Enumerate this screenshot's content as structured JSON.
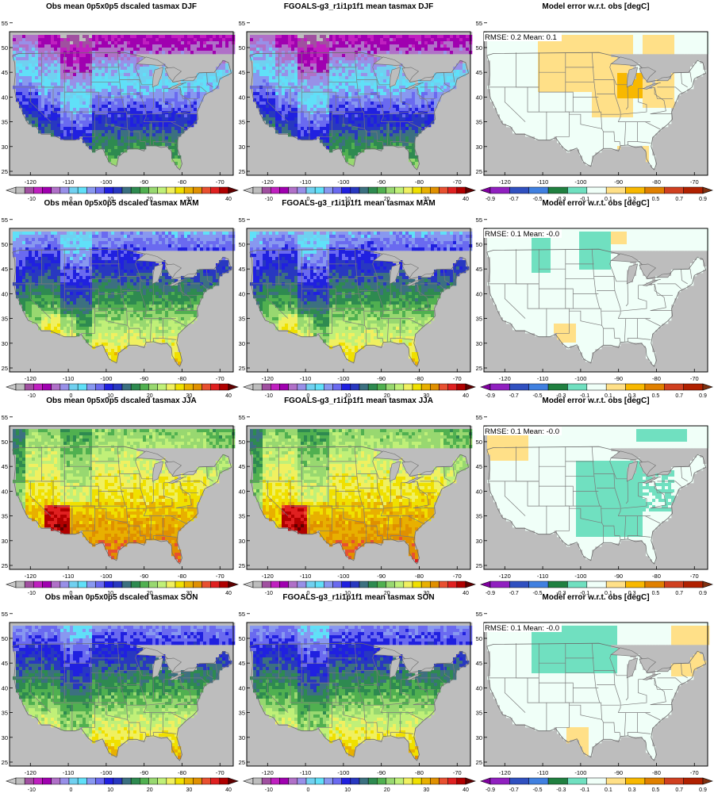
{
  "figure": {
    "rows": [
      {
        "season": "DJF",
        "titles": [
          "Obs mean 0p5x0p5 dscaled tasmax DJF",
          "FGOALS-g3_r1i1p1f1 mean tasmax DJF",
          "Model error w.r.t. obs [degC]"
        ],
        "stats": "RMSE: 0.2  Mean: 0.1"
      },
      {
        "season": "MAM",
        "titles": [
          "Obs mean 0p5x0p5 dscaled tasmax MAM",
          "FGOALS-g3_r1i1p1f1 mean tasmax MAM",
          "Model error w.r.t. obs [degC]"
        ],
        "stats": "RMSE: 0.1  Mean: -0.0"
      },
      {
        "season": "JJA",
        "titles": [
          "Obs mean 0p5x0p5 dscaled tasmax JJA",
          "FGOALS-g3_r1i1p1f1 mean tasmax JJA",
          "Model error w.r.t. obs [degC]"
        ],
        "stats": "RMSE: 0.1  Mean: -0.0"
      },
      {
        "season": "SON",
        "titles": [
          "Obs mean 0p5x0p5 dscaled tasmax SON",
          "FGOALS-g3_r1i1p1f1 mean tasmax SON",
          "Model error w.r.t. obs [degC]"
        ],
        "stats": "RMSE: 0.1  Mean: -0.0"
      }
    ],
    "x_ticks": [
      "-120",
      "-110",
      "-100",
      "-90",
      "-80",
      "-70"
    ],
    "y_ticks": [
      "55",
      "50",
      "45",
      "40",
      "35",
      "30",
      "25"
    ],
    "temp_colorbar": {
      "labels": [
        "-10",
        "0",
        "10",
        "20",
        "30",
        "40"
      ],
      "colors": [
        "#c8c8c8",
        "#bdbdbd",
        "#a050a0",
        "#c020c0",
        "#a000b0",
        "#b070c8",
        "#9890e8",
        "#70d0f0",
        "#60e0f8",
        "#8898f0",
        "#6a6af0",
        "#2020e0",
        "#2838c0",
        "#3c7080",
        "#2e8a50",
        "#50b050",
        "#98d870",
        "#c0f078",
        "#f0f060",
        "#f0e000",
        "#e8b000",
        "#e09000",
        "#e85030",
        "#e02020",
        "#b00000",
        "#600000"
      ]
    },
    "error_colorbar": {
      "labels": [
        "-0.9",
        "-0.7",
        "-0.5",
        "-0.3",
        "-0.1",
        "0.1",
        "0.3",
        "0.5",
        "0.7",
        "0.9"
      ],
      "colors": [
        "#8000a0",
        "#9020c0",
        "#3050c0",
        "#4080e0",
        "#208040",
        "#70e0c0",
        "#f0fff8",
        "#ffe088",
        "#f8b800",
        "#e08000",
        "#d04020",
        "#b02000",
        "#803010"
      ]
    },
    "background_color": "#bdbdbd"
  }
}
